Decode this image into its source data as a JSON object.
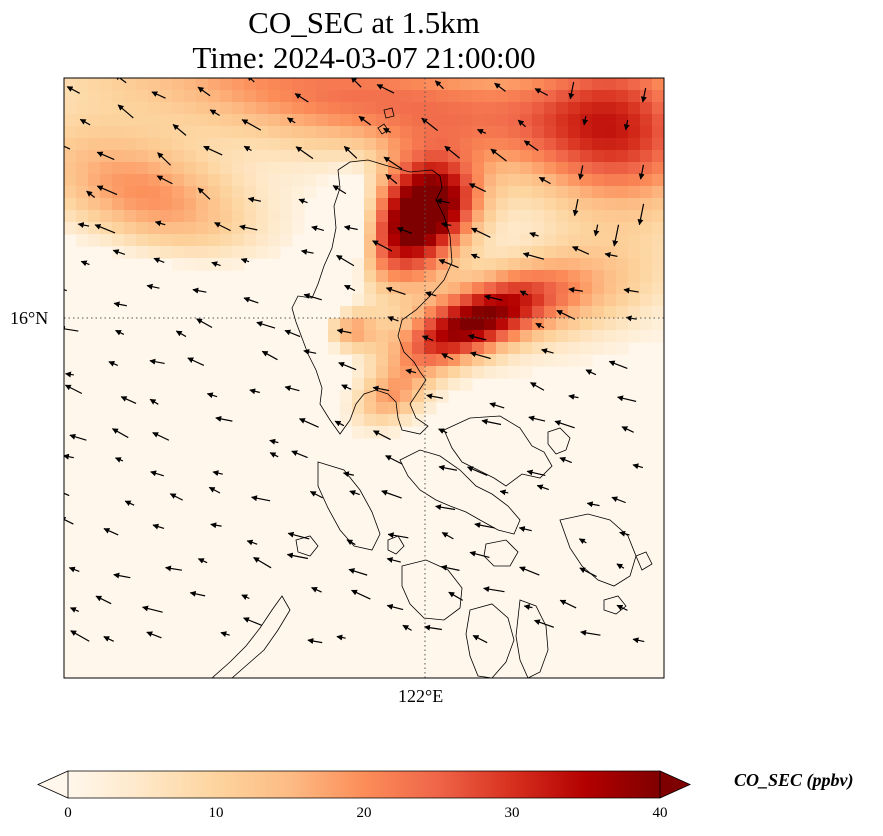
{
  "title": {
    "line1": "CO_SEC at 1.5km",
    "line2": "Time: 2024-03-07 21:00:00"
  },
  "axes": {
    "lat_label": "16°N",
    "lon_label": "122°E",
    "gridlines": "dotted"
  },
  "colorbar": {
    "label": "CO_SEC (ppbv)",
    "ticks": [
      "0",
      "10",
      "20",
      "30",
      "40"
    ],
    "range": [
      0,
      40
    ],
    "extend": "both",
    "colormap": "OrRd",
    "colors": [
      "#fff7ec",
      "#fee8c8",
      "#fdd49e",
      "#fdbb84",
      "#fc8d59",
      "#ef6548",
      "#d7301f",
      "#b30000",
      "#7f0000"
    ]
  },
  "map": {
    "features": [
      "coastlines",
      "wind-vectors",
      "co-sec-field"
    ]
  }
}
